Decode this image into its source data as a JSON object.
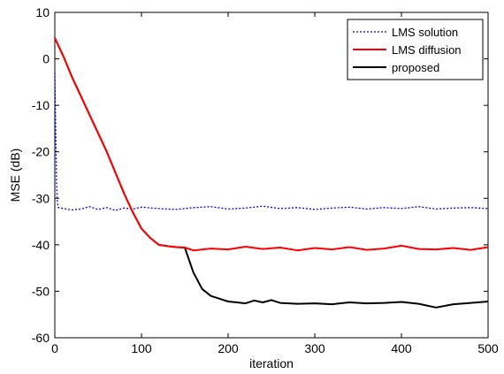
{
  "chart_data": {
    "type": "line",
    "title": "",
    "xlabel": "iteration",
    "ylabel": "MSE (dB)",
    "xlim": [
      0,
      500
    ],
    "ylim": [
      -60,
      10
    ],
    "xticks": [
      0,
      100,
      200,
      300,
      400,
      500
    ],
    "yticks": [
      10,
      0,
      -10,
      -20,
      -30,
      -40,
      -50,
      -60
    ],
    "grid": false,
    "legend_position": "top-right",
    "series": [
      {
        "name": "LMS solution",
        "color": "#0000ff",
        "style": "dotted",
        "x": [
          0,
          1,
          2,
          3,
          4,
          5,
          10,
          20,
          30,
          40,
          50,
          60,
          70,
          80,
          90,
          100,
          120,
          140,
          160,
          180,
          200,
          220,
          240,
          260,
          280,
          300,
          320,
          340,
          360,
          380,
          400,
          420,
          440,
          460,
          480,
          500
        ],
        "y": [
          -3,
          -15,
          -27,
          -31,
          -32,
          -32,
          -32.2,
          -32.5,
          -32.3,
          -31.8,
          -32.4,
          -32.0,
          -32.6,
          -32.1,
          -32.3,
          -31.9,
          -32.2,
          -32.4,
          -32.0,
          -31.8,
          -32.3,
          -32.1,
          -31.7,
          -32.2,
          -32.0,
          -32.4,
          -32.1,
          -31.9,
          -32.3,
          -32.0,
          -32.2,
          -31.8,
          -32.3,
          -32.1,
          -32.0,
          -32.2
        ]
      },
      {
        "name": "LMS diffusion",
        "color": "#ff0000",
        "style": "solid",
        "x": [
          0,
          10,
          20,
          30,
          40,
          50,
          60,
          70,
          80,
          90,
          100,
          110,
          120,
          130,
          140,
          150,
          160,
          180,
          200,
          220,
          240,
          260,
          280,
          300,
          320,
          340,
          360,
          380,
          400,
          420,
          440,
          460,
          480,
          500
        ],
        "y": [
          4.5,
          0.5,
          -4,
          -8,
          -12,
          -16,
          -20,
          -24.5,
          -29,
          -33,
          -36.5,
          -38.5,
          -40,
          -40.3,
          -40.5,
          -40.6,
          -41.2,
          -40.8,
          -41.0,
          -40.4,
          -40.9,
          -40.6,
          -41.2,
          -40.7,
          -41.0,
          -40.5,
          -41.1,
          -40.8,
          -40.2,
          -40.9,
          -41.0,
          -40.7,
          -41.1,
          -40.5
        ]
      },
      {
        "name": "proposed",
        "color": "#000000",
        "style": "solid",
        "x": [
          0,
          10,
          20,
          30,
          40,
          50,
          60,
          70,
          80,
          90,
          100,
          110,
          120,
          130,
          140,
          150,
          160,
          170,
          180,
          190,
          200,
          210,
          220,
          230,
          240,
          250,
          260,
          280,
          300,
          320,
          340,
          360,
          380,
          400,
          420,
          440,
          460,
          480,
          500
        ],
        "y": [
          4.5,
          0.5,
          -4,
          -8,
          -12,
          -16,
          -20,
          -24.5,
          -29,
          -33,
          -36.5,
          -38.5,
          -40,
          -40.3,
          -40.5,
          -40.6,
          -46,
          -49.5,
          -51,
          -51.6,
          -52.2,
          -52.4,
          -52.6,
          -52.0,
          -52.4,
          -51.9,
          -52.5,
          -52.7,
          -52.6,
          -52.8,
          -52.4,
          -52.6,
          -52.5,
          -52.3,
          -52.7,
          -53.5,
          -52.8,
          -52.5,
          -52.2
        ]
      }
    ]
  }
}
